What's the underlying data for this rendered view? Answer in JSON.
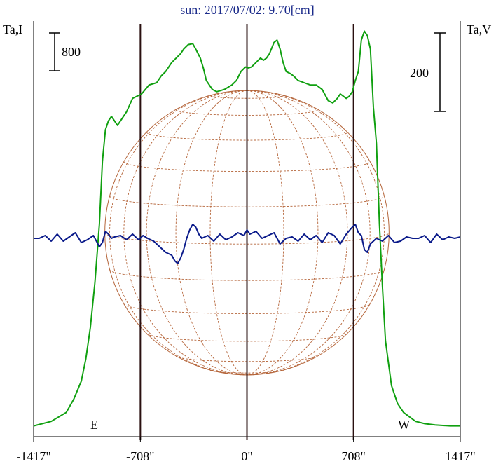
{
  "chart_data": {
    "type": "line",
    "title": "sun: 2017/07/02: 9.70[cm]",
    "left_axis_label": "Ta,I",
    "right_axis_label": "Ta,V",
    "scale_bar_left": "800",
    "scale_bar_right": "200",
    "x_ticks": [
      {
        "value": -1417,
        "label": "-1417\""
      },
      {
        "value": -708,
        "label": "-708\""
      },
      {
        "value": 0,
        "label": "0\""
      },
      {
        "value": 708,
        "label": "708\""
      },
      {
        "value": 1417,
        "label": "1417\""
      }
    ],
    "xlim": [
      -1417,
      1417
    ],
    "vertical_lines": [
      -708,
      0,
      708
    ],
    "limb_labels": {
      "east": "E",
      "west": "W"
    },
    "solar_radius": 944,
    "colors": {
      "stokes_i": "#10a010",
      "stokes_v": "#0a1a8a",
      "grid": "#b5653a",
      "limb_line": "#2a1010",
      "title": "#1a2a8a"
    },
    "series": [
      {
        "key": "stokes_i",
        "x": [
          -1417,
          -1300,
          -1200,
          -1150,
          -1100,
          -1070,
          -1040,
          -1010,
          -980,
          -960,
          -940,
          -920,
          -900,
          -880,
          -860,
          -840,
          -800,
          -760,
          -700,
          -650,
          -600,
          -570,
          -540,
          -500,
          -470,
          -440,
          -420,
          -390,
          -360,
          -340,
          -310,
          -290,
          -270,
          -250,
          -230,
          -200,
          -150,
          -100,
          -70,
          -40,
          -10,
          10,
          30,
          60,
          90,
          110,
          130,
          150,
          180,
          200,
          220,
          240,
          260,
          290,
          310,
          340,
          380,
          420,
          460,
          500,
          540,
          570,
          600,
          620,
          640,
          660,
          680,
          700,
          720,
          740,
          760,
          780,
          800,
          820,
          840,
          860,
          880,
          900,
          920,
          940,
          960,
          980,
          1000,
          1040,
          1080,
          1120,
          1180,
          1250,
          1350,
          1417
        ],
        "y": [
          10,
          20,
          40,
          70,
          110,
          160,
          230,
          330,
          460,
          600,
          670,
          690,
          700,
          690,
          680,
          690,
          710,
          740,
          750,
          770,
          775,
          790,
          800,
          820,
          830,
          840,
          850,
          860,
          862,
          850,
          830,
          808,
          780,
          770,
          760,
          755,
          760,
          770,
          780,
          800,
          810,
          808,
          810,
          820,
          830,
          825,
          830,
          840,
          865,
          870,
          850,
          820,
          800,
          795,
          790,
          780,
          775,
          770,
          770,
          760,
          735,
          730,
          740,
          750,
          745,
          740,
          745,
          755,
          780,
          800,
          870,
          890,
          880,
          850,
          720,
          640,
          460,
          320,
          200,
          150,
          100,
          80,
          60,
          40,
          30,
          20,
          15,
          12,
          10,
          10
        ]
      },
      {
        "key": "stokes_v",
        "x": [
          -1417,
          -1380,
          -1340,
          -1300,
          -1260,
          -1220,
          -1180,
          -1140,
          -1100,
          -1060,
          -1020,
          -980,
          -960,
          -940,
          -920,
          -900,
          -880,
          -840,
          -800,
          -760,
          -720,
          -690,
          -660,
          -620,
          -580,
          -540,
          -500,
          -480,
          -460,
          -440,
          -420,
          -400,
          -380,
          -360,
          -340,
          -320,
          -300,
          -260,
          -220,
          -180,
          -140,
          -100,
          -60,
          -20,
          0,
          20,
          60,
          100,
          140,
          180,
          220,
          260,
          300,
          340,
          380,
          420,
          460,
          500,
          540,
          580,
          620,
          660,
          700,
          720,
          740,
          760,
          780,
          800,
          820,
          860,
          900,
          940,
          980,
          1020,
          1060,
          1100,
          1140,
          1180,
          1220,
          1260,
          1300,
          1340,
          1380,
          1417
        ],
        "y": [
          0,
          0,
          2,
          -2,
          3,
          -2,
          1,
          4,
          -3,
          -1,
          2,
          -6,
          -3,
          5,
          3,
          0,
          1,
          2,
          -1,
          3,
          -1,
          2,
          0,
          -2,
          -6,
          -10,
          -12,
          -16,
          -18,
          -14,
          -8,
          0,
          6,
          10,
          8,
          3,
          0,
          2,
          -2,
          3,
          -1,
          1,
          4,
          2,
          6,
          3,
          5,
          0,
          2,
          4,
          -4,
          0,
          1,
          -2,
          3,
          -1,
          2,
          -3,
          4,
          2,
          -4,
          3,
          8,
          10,
          4,
          2,
          -8,
          -10,
          -4,
          0,
          -2,
          2,
          -3,
          -2,
          1,
          0,
          0,
          2,
          -3,
          3,
          -1,
          1,
          0,
          1
        ]
      }
    ]
  }
}
